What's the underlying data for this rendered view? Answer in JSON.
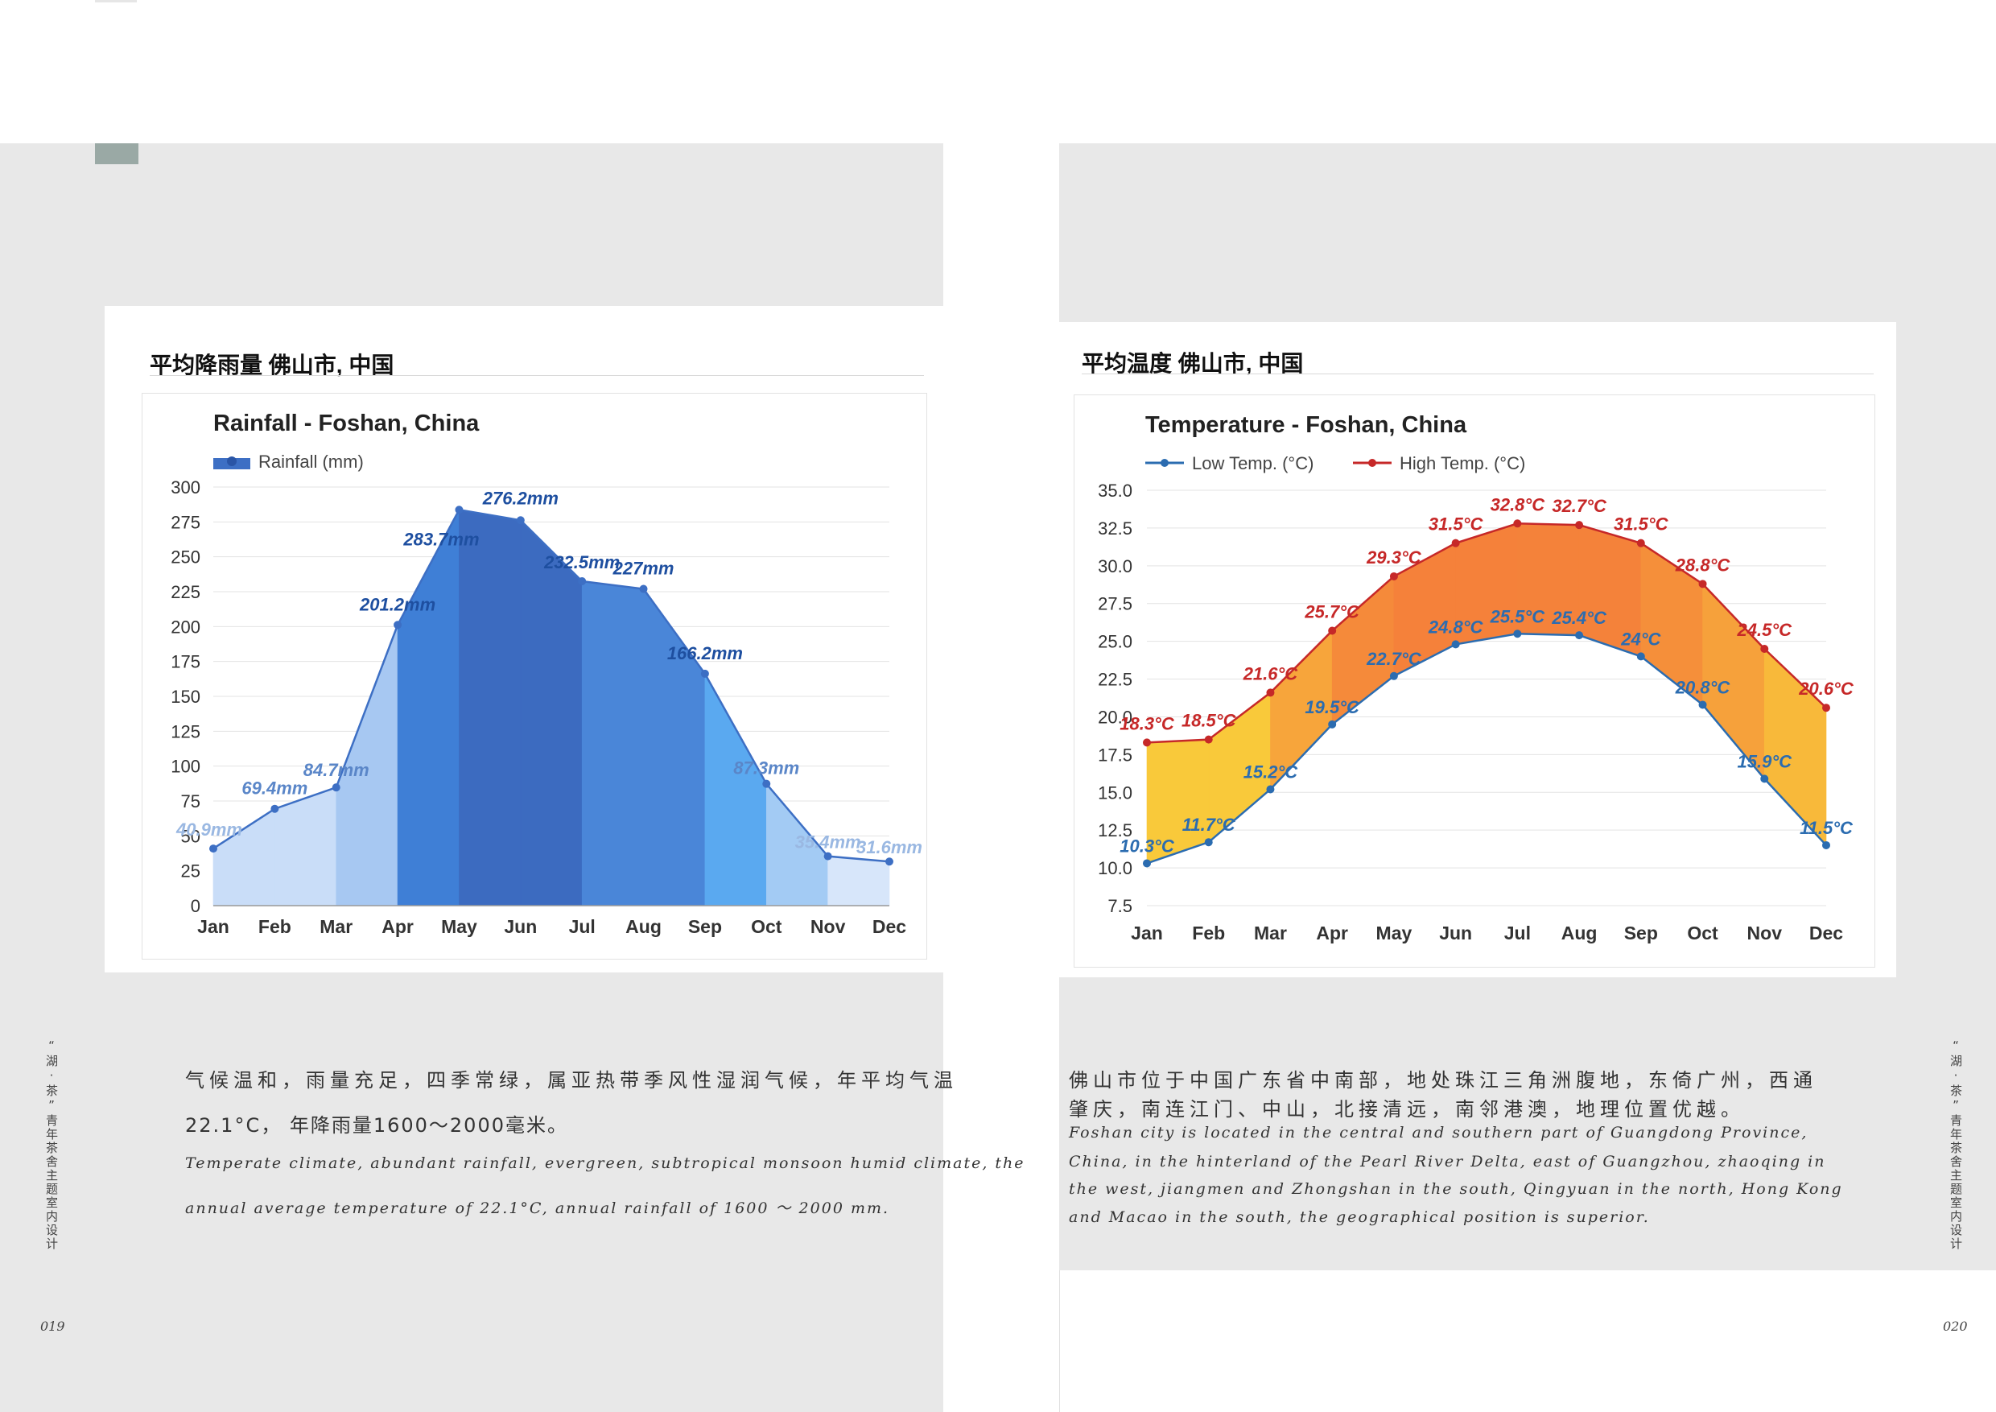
{
  "side_label": "“湖·茶”青年茶舍主题室内设计",
  "page_left": "019",
  "page_right": "020",
  "left_card": {
    "title": "平均降雨量 佛山市, 中国"
  },
  "right_card": {
    "title": "平均温度 佛山市, 中国"
  },
  "left_text": {
    "cn_line1": "气候温和，雨量充足，四季常绿，属亚热带季风性湿润气候，年平均气温",
    "cn_line2": "22.1°C， 年降雨量1600～2000毫米。",
    "en_line1": "Temperate climate, abundant rainfall, evergreen, subtropical monsoon humid climate, the",
    "en_line2": "annual average temperature of 22.1°C, annual rainfall of 1600 ～ 2000 mm."
  },
  "right_text": {
    "cn_line1": "佛山市位于中国广东省中南部，地处珠江三角洲腹地，东倚广州，西通",
    "cn_line2": "肇庆，南连江门、中山，北接清远，南邻港澳，地理位置优越。",
    "en_line1": "Foshan city is located in the central and southern part of Guangdong Province,",
    "en_line2": "China, in the hinterland of the Pearl River Delta, east of Guangzhou, zhaoqing in",
    "en_line3": "the west, jiangmen and Zhongshan in the south, Qingyuan in the north, Hong Kong",
    "en_line4": "and Macao in the south, the geographical position is superior."
  },
  "chart_data": [
    {
      "type": "area",
      "title": "Rainfall - Foshan, China",
      "legend_position": "top-left",
      "grid": true,
      "categories": [
        "Jan",
        "Feb",
        "Mar",
        "Apr",
        "May",
        "Jun",
        "Jul",
        "Aug",
        "Sep",
        "Oct",
        "Nov",
        "Dec"
      ],
      "series": [
        {
          "name": "Rainfall (mm)",
          "values": [
            40.9,
            69.4,
            84.7,
            201.2,
            283.7,
            276.2,
            232.5,
            227,
            166.2,
            87.3,
            35.4,
            31.6
          ]
        }
      ],
      "data_labels": [
        "40.9mm",
        "69.4mm",
        "84.7mm",
        "201.2mm",
        "283.7mm",
        "276.2mm",
        "232.5mm",
        "227mm",
        "166.2mm",
        "87.3mm",
        "35.4mm",
        "31.6mm"
      ],
      "y_ticks": [
        "0",
        "25",
        "50",
        "75",
        "100",
        "125",
        "150",
        "175",
        "200",
        "225",
        "250",
        "275",
        "300"
      ],
      "ylim": [
        0,
        300
      ],
      "month_colors": [
        "#c9ddf8",
        "#c9ddf8",
        "#a7c8f2",
        "#3f7fd6",
        "#3c6bc0",
        "#3c6bc0",
        "#4a86d8",
        "#4a86d8",
        "#5aa9f0",
        "#a3cbf4",
        "#d7e6fa",
        "#d7e6fa"
      ],
      "line_color": "#3d6fc4"
    },
    {
      "type": "area",
      "title": "Temperature - Foshan, China",
      "legend_position": "top-left",
      "grid": true,
      "categories": [
        "Jan",
        "Feb",
        "Mar",
        "Apr",
        "May",
        "Jun",
        "Jul",
        "Aug",
        "Sep",
        "Oct",
        "Nov",
        "Dec"
      ],
      "series": [
        {
          "name": "Low Temp. (°C)",
          "values": [
            10.3,
            11.7,
            15.2,
            19.5,
            22.7,
            24.8,
            25.5,
            25.4,
            24,
            20.8,
            15.9,
            11.5
          ],
          "color": "#2b6cb0"
        },
        {
          "name": "High Temp. (°C)",
          "values": [
            18.3,
            18.5,
            21.6,
            25.7,
            29.3,
            31.5,
            32.8,
            32.7,
            31.5,
            28.8,
            24.5,
            20.6
          ],
          "color": "#c62828"
        }
      ],
      "low_labels": [
        "10.3°C",
        "11.7°C",
        "15.2°C",
        "19.5°C",
        "22.7°C",
        "24.8°C",
        "25.5°C",
        "25.4°C",
        "24°C",
        "20.8°C",
        "15.9°C",
        "11.5°C"
      ],
      "high_labels": [
        "18.3°C",
        "18.5°C",
        "21.6°C",
        "25.7°C",
        "29.3°C",
        "31.5°C",
        "32.8°C",
        "32.7°C",
        "31.5°C",
        "28.8°C",
        "24.5°C",
        "20.6°C"
      ],
      "y_ticks": [
        "7.5",
        "10.0",
        "12.5",
        "15.0",
        "17.5",
        "20.0",
        "22.5",
        "25.0",
        "27.5",
        "30.0",
        "32.5",
        "35.0"
      ],
      "ylim": [
        7.5,
        35
      ],
      "month_colors": [
        "#f9c93a",
        "#f9c93a",
        "#f7a53b",
        "#f58a3a",
        "#f5813a",
        "#f5813a",
        "#f4823a",
        "#f4823a",
        "#f58f3a",
        "#f6a13b",
        "#f8b93a",
        "#f9c93a"
      ]
    }
  ]
}
